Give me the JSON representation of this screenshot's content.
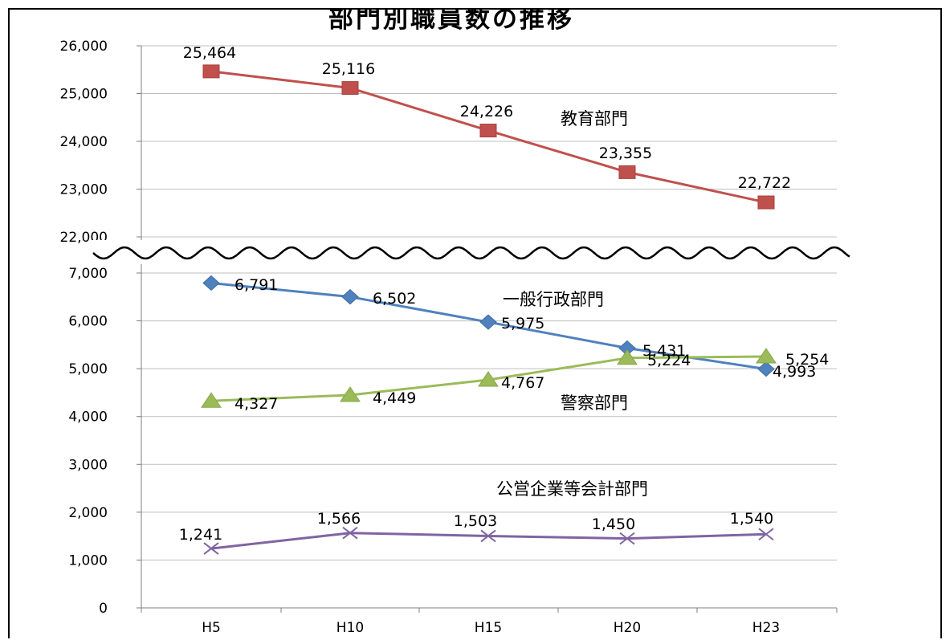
{
  "chart_data": {
    "type": "line",
    "title": "部門別職員数の推移",
    "categories": [
      "H5",
      "H10",
      "H15",
      "H20",
      "H23"
    ],
    "axis_break": {
      "lower_range": [
        0,
        7000
      ],
      "upper_range": [
        22000,
        26000
      ]
    },
    "y_ticks_lower": [
      "0",
      "1,000",
      "2,000",
      "3,000",
      "4,000",
      "5,000",
      "6,000",
      "7,000"
    ],
    "y_ticks_upper": [
      "22,000",
      "23,000",
      "24,000",
      "25,000",
      "26,000"
    ],
    "grid": true,
    "series": [
      {
        "name": "教育部門",
        "color": "#c0504d",
        "marker": "square",
        "values": [
          25464,
          25116,
          24226,
          23355,
          22722
        ],
        "labels": [
          "25,464",
          "25,116",
          "24,226",
          "23,355",
          "22,722"
        ]
      },
      {
        "name": "一般行政部門",
        "color": "#4f81bd",
        "marker": "diamond",
        "values": [
          6791,
          6502,
          5975,
          5431,
          4993
        ],
        "labels": [
          "6,791",
          "6,502",
          "5,975",
          "5,431",
          "4,993"
        ]
      },
      {
        "name": "警察部門",
        "color": "#9bbb59",
        "marker": "triangle",
        "values": [
          4327,
          4449,
          4767,
          5224,
          5254
        ],
        "labels": [
          "4,327",
          "4,449",
          "4,767",
          "5,224",
          "5,254"
        ]
      },
      {
        "name": "公営企業等会計部門",
        "color": "#8064a2",
        "marker": "x",
        "values": [
          1241,
          1566,
          1503,
          1450,
          1540
        ],
        "labels": [
          "1,241",
          "1,566",
          "1,503",
          "1,450",
          "1,540"
        ]
      }
    ]
  }
}
